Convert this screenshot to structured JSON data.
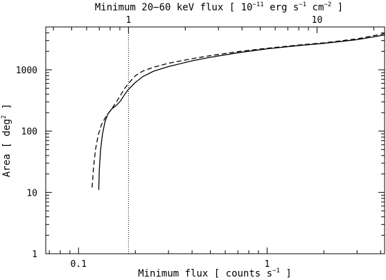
{
  "chart_data": {
    "type": "line",
    "xscale": "log",
    "yscale": "log",
    "xlim": [
      0.067,
      4.2
    ],
    "ylim": [
      1,
      5000
    ],
    "xlabel": {
      "base": "Minimum flux  [ counts s",
      "sup": "−1",
      "tail": " ]"
    },
    "ylabel": {
      "base": "Area  [ deg",
      "sup": "2",
      "tail": " ]"
    },
    "top_axis_label": {
      "base": "Minimum 20−60 keV flux  [ 10",
      "sup1": "−11",
      "mid1": " erg s",
      "sup2": "−1",
      "mid2": " cm",
      "sup3": "−2",
      "tail": " ]"
    },
    "x_ticks": [
      {
        "value": 0.1,
        "label": "0.1"
      },
      {
        "value": 1,
        "label": "1"
      }
    ],
    "y_ticks": [
      {
        "value": 1,
        "label": "1"
      },
      {
        "value": 10,
        "label": "10"
      },
      {
        "value": 100,
        "label": "100"
      },
      {
        "value": 1000,
        "label": "1000"
      }
    ],
    "top_ticks": [
      {
        "value": 1,
        "label": "1",
        "x_counts": 0.184
      },
      {
        "value": 10,
        "label": "10",
        "x_counts": 1.84
      }
    ],
    "vline": {
      "x": 0.184,
      "style": "dotted"
    },
    "series": [
      {
        "style": "solid",
        "x": [
          0.128,
          0.129,
          0.131,
          0.134,
          0.138,
          0.143,
          0.15,
          0.158,
          0.167,
          0.175,
          0.184,
          0.2,
          0.22,
          0.25,
          0.3,
          0.4,
          0.5,
          0.7,
          1.0,
          1.5,
          2.0,
          3.0,
          4.2
        ],
        "y": [
          11,
          25,
          50,
          90,
          140,
          190,
          230,
          260,
          310,
          390,
          480,
          620,
          780,
          950,
          1130,
          1400,
          1600,
          1900,
          2200,
          2500,
          2700,
          3100,
          3700
        ]
      },
      {
        "style": "dashed",
        "x": [
          0.118,
          0.12,
          0.123,
          0.127,
          0.132,
          0.14,
          0.15,
          0.163,
          0.175,
          0.184,
          0.2,
          0.22,
          0.25,
          0.3,
          0.4,
          0.5,
          0.7,
          1.0,
          1.5,
          2.0,
          3.0,
          4.2
        ],
        "y": [
          12,
          25,
          50,
          85,
          125,
          175,
          230,
          340,
          490,
          600,
          800,
          960,
          1100,
          1280,
          1520,
          1700,
          1980,
          2250,
          2550,
          2750,
          3200,
          3900
        ]
      }
    ]
  }
}
